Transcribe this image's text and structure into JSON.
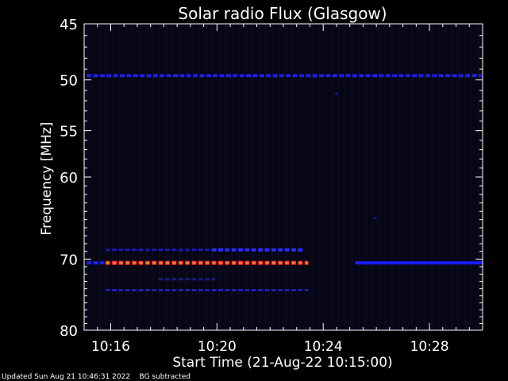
{
  "chart_data": {
    "type": "heatmap",
    "title": "Solar radio Flux (Glasgow)",
    "xlabel": "Start Time (21-Aug-22 10:15:00)",
    "ylabel": "Frequency [MHz]",
    "x_unit": "minutes after 10:00",
    "xlim": [
      15.0,
      30.0
    ],
    "ylim": [
      45,
      80
    ],
    "y_scale": "log",
    "y_inverted": true,
    "x_ticks": [
      {
        "value": 16,
        "label": "10:16"
      },
      {
        "value": 20,
        "label": "10:20"
      },
      {
        "value": 24,
        "label": "10:24"
      },
      {
        "value": 28,
        "label": "10:28"
      }
    ],
    "y_ticks": [
      45,
      50,
      55,
      60,
      70,
      80
    ],
    "background_color": "#060614",
    "emission_bands": [
      {
        "freq": 49.6,
        "t_start": 15.1,
        "t_end": 30.0,
        "intensity": "medium",
        "color": "#1f1fe6"
      },
      {
        "freq": 51.3,
        "t_start": 24.45,
        "t_end": 24.55,
        "intensity": "weak",
        "color": "#1515b0"
      },
      {
        "freq": 64.8,
        "t_start": 25.9,
        "t_end": 26.0,
        "intensity": "weak",
        "color": "#101090"
      },
      {
        "freq": 68.8,
        "t_start": 15.8,
        "t_end": 19.8,
        "intensity": "weak",
        "color": "#1a1ab8"
      },
      {
        "freq": 68.8,
        "t_start": 19.8,
        "t_end": 23.3,
        "intensity": "medium",
        "color": "#2a2aff"
      },
      {
        "freq": 70.5,
        "t_start": 15.1,
        "t_end": 15.8,
        "intensity": "medium",
        "color": "#2020ff"
      },
      {
        "freq": 70.5,
        "t_start": 15.8,
        "t_end": 23.5,
        "intensity": "strong",
        "color": "#ff2020"
      },
      {
        "freq": 70.5,
        "t_start": 25.2,
        "t_end": 30.0,
        "intensity": "medium",
        "color": "#1a1aff"
      },
      {
        "freq": 72.7,
        "t_start": 17.8,
        "t_end": 20.0,
        "intensity": "weak",
        "color": "#1a1a80"
      },
      {
        "freq": 74.2,
        "t_start": 15.8,
        "t_end": 23.5,
        "intensity": "weak",
        "color": "#1f1fb0"
      }
    ]
  },
  "footer": {
    "updated": "Updated Sun Aug 21 10:46:31 2022",
    "note": "BG subtracted"
  }
}
